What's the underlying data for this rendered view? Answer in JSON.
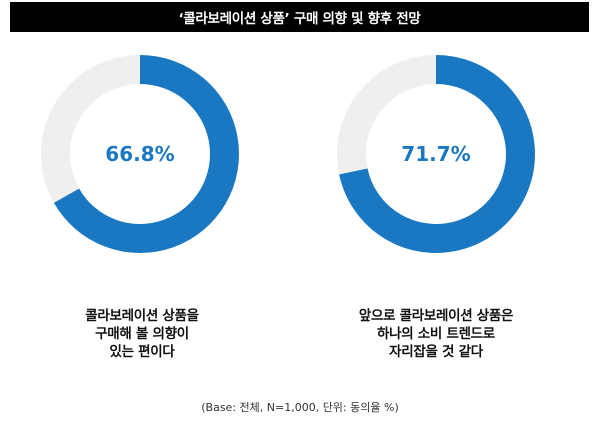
{
  "header": {
    "title": "‘콜라보레이션 상품’ 구매 의향 및 향후 전망"
  },
  "chart_data": [
    {
      "type": "pie",
      "variant": "donut",
      "values": [
        66.8,
        33.2
      ],
      "center_label": "66.8%",
      "caption_lines": [
        "콜라보레이션 상품을",
        "구매해 볼 의향이",
        "있는 편이다"
      ],
      "colors": [
        "#1a78c2",
        "#efefef"
      ]
    },
    {
      "type": "pie",
      "variant": "donut",
      "values": [
        71.7,
        28.3
      ],
      "center_label": "71.7%",
      "caption_lines": [
        "앞으로 콜라보레이션 상품은",
        "하나의 소비 트렌드로",
        "자리잡을 것 같다"
      ],
      "colors": [
        "#1a78c2",
        "#efefef"
      ]
    }
  ],
  "footnote": "(Base: 전체, N=1,000, 단위: 동의율 %)"
}
